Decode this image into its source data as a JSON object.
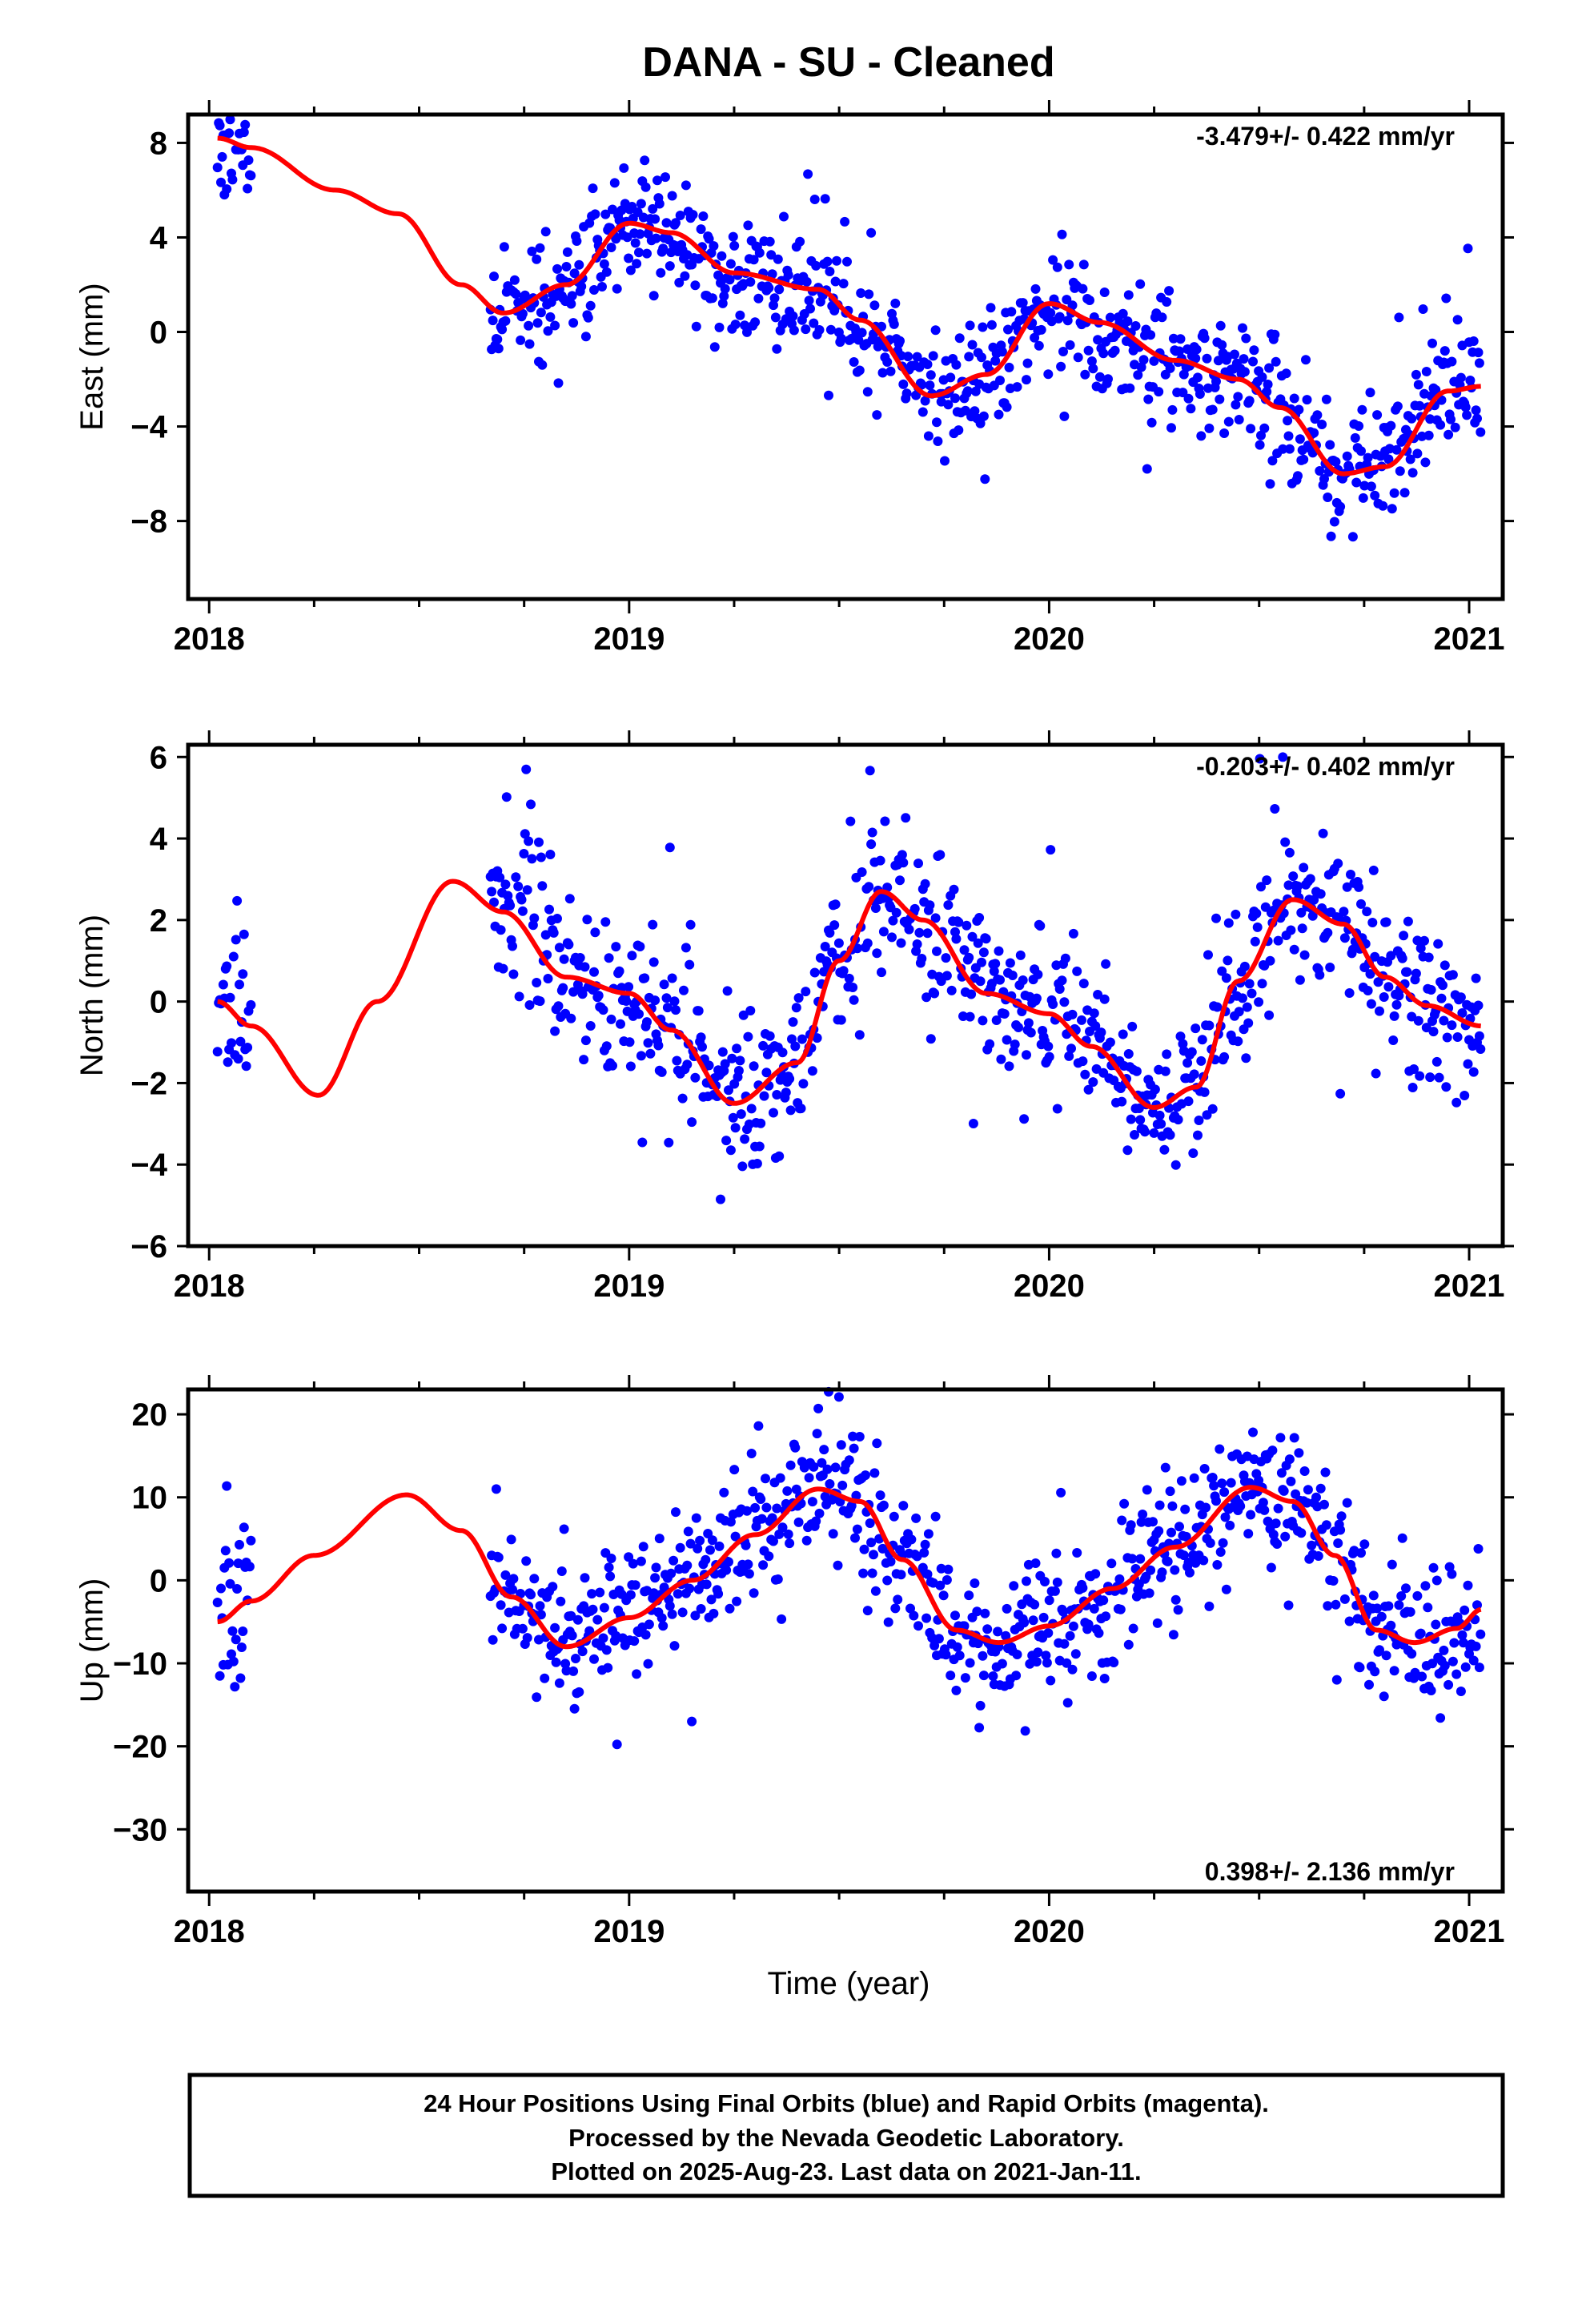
{
  "page": {
    "title": "DANA  - SU - Cleaned",
    "xlabel": "Time (year)",
    "footer": [
      "24 Hour Positions Using Final Orbits (blue) and Rapid Orbits (magenta).",
      "Processed by the Nevada Geodetic Laboratory.",
      "Plotted on 2025-Aug-23. Last data on 2021-Jan-11."
    ]
  },
  "colors": {
    "points": "#0000ff",
    "model": "#ff0000",
    "frame": "#000000"
  },
  "chart_data": [
    {
      "type": "scatter",
      "ylabel": "East (mm)",
      "rate": "-3.479+/- 0.422 mm/yr",
      "rate_position": "top-right",
      "xlim": [
        2017.95,
        2021.08
      ],
      "ylim": [
        -11.3,
        9.2
      ],
      "xticks": [
        2018,
        2019,
        2020,
        2021
      ],
      "yticks": [
        8,
        4,
        0,
        -4,
        -8
      ],
      "ytick_labels": [
        "8",
        "4",
        "0",
        "−4",
        "−8"
      ],
      "series": [
        {
          "kind": "points",
          "seed": 11,
          "scatter_sd": 1.3,
          "outlier_rate": 0.02,
          "segments": [
            [
              2018.02,
              2018.1
            ],
            [
              2018.67,
              2021.03
            ]
          ]
        },
        {
          "kind": "model",
          "knots": [
            [
              2018.02,
              8.2
            ],
            [
              2018.1,
              7.8
            ],
            [
              2018.3,
              6.0
            ],
            [
              2018.45,
              5.0
            ],
            [
              2018.6,
              2.0
            ],
            [
              2018.7,
              0.8
            ],
            [
              2018.85,
              2.0
            ],
            [
              2019.0,
              4.6
            ],
            [
              2019.1,
              4.2
            ],
            [
              2019.25,
              2.5
            ],
            [
              2019.45,
              1.8
            ],
            [
              2019.55,
              0.5
            ],
            [
              2019.72,
              -2.7
            ],
            [
              2019.85,
              -1.8
            ],
            [
              2020.0,
              1.2
            ],
            [
              2020.12,
              0.4
            ],
            [
              2020.3,
              -1.2
            ],
            [
              2020.45,
              -2.0
            ],
            [
              2020.55,
              -3.2
            ],
            [
              2020.7,
              -6.0
            ],
            [
              2020.8,
              -5.7
            ],
            [
              2020.95,
              -2.5
            ],
            [
              2021.03,
              -2.3
            ]
          ]
        }
      ]
    },
    {
      "type": "scatter",
      "ylabel": "North (mm)",
      "rate": "-0.203+/- 0.402 mm/yr",
      "rate_position": "top-right",
      "xlim": [
        2017.95,
        2021.08
      ],
      "ylim": [
        -6.0,
        6.3
      ],
      "xticks": [
        2018,
        2019,
        2020,
        2021
      ],
      "yticks": [
        6,
        4,
        2,
        0,
        -2,
        -4,
        -6
      ],
      "ytick_labels": [
        "6",
        "4",
        "2",
        "0",
        "−2",
        "−4",
        "−6"
      ],
      "series": [
        {
          "kind": "points",
          "seed": 23,
          "scatter_sd": 0.95,
          "outlier_rate": 0.02,
          "segments": [
            [
              2018.02,
              2018.1
            ],
            [
              2018.67,
              2021.03
            ]
          ]
        },
        {
          "kind": "model",
          "knots": [
            [
              2018.02,
              0.0
            ],
            [
              2018.1,
              -0.6
            ],
            [
              2018.26,
              -2.3
            ],
            [
              2018.4,
              0.0
            ],
            [
              2018.58,
              2.95
            ],
            [
              2018.7,
              2.2
            ],
            [
              2018.85,
              0.6
            ],
            [
              2019.0,
              0.2
            ],
            [
              2019.1,
              -0.7
            ],
            [
              2019.25,
              -2.5
            ],
            [
              2019.4,
              -1.5
            ],
            [
              2019.5,
              1.0
            ],
            [
              2019.6,
              2.7
            ],
            [
              2019.7,
              2.0
            ],
            [
              2019.85,
              0.2
            ],
            [
              2020.0,
              -0.3
            ],
            [
              2020.1,
              -1.1
            ],
            [
              2020.25,
              -2.6
            ],
            [
              2020.35,
              -2.1
            ],
            [
              2020.45,
              0.5
            ],
            [
              2020.58,
              2.5
            ],
            [
              2020.7,
              1.9
            ],
            [
              2020.8,
              0.6
            ],
            [
              2020.9,
              -0.1
            ],
            [
              2021.03,
              -0.6
            ]
          ]
        }
      ]
    },
    {
      "type": "scatter",
      "ylabel": "Up (mm)",
      "rate": "0.398+/- 2.136 mm/yr",
      "rate_position": "bottom-right",
      "xlim": [
        2017.95,
        2021.08
      ],
      "ylim": [
        -37.5,
        23.0
      ],
      "xticks": [
        2018,
        2019,
        2020,
        2021
      ],
      "yticks": [
        20,
        10,
        0,
        -10,
        -20,
        -30
      ],
      "ytick_labels": [
        "20",
        "10",
        "0",
        "−10",
        "−20",
        "−30"
      ],
      "series": [
        {
          "kind": "points",
          "seed": 37,
          "scatter_sd": 4.3,
          "outlier_rate": 0.02,
          "segments": [
            [
              2018.02,
              2018.1
            ],
            [
              2018.67,
              2021.03
            ]
          ]
        },
        {
          "kind": "model",
          "knots": [
            [
              2018.02,
              -5.0
            ],
            [
              2018.1,
              -2.5
            ],
            [
              2018.25,
              3.0
            ],
            [
              2018.47,
              10.3
            ],
            [
              2018.6,
              6.0
            ],
            [
              2018.72,
              -2.0
            ],
            [
              2018.85,
              -8.0
            ],
            [
              2019.0,
              -4.5
            ],
            [
              2019.15,
              0.0
            ],
            [
              2019.3,
              5.5
            ],
            [
              2019.45,
              11.0
            ],
            [
              2019.55,
              9.5
            ],
            [
              2019.65,
              2.5
            ],
            [
              2019.78,
              -6.0
            ],
            [
              2019.88,
              -7.5
            ],
            [
              2020.0,
              -5.5
            ],
            [
              2020.15,
              -1.0
            ],
            [
              2020.3,
              4.0
            ],
            [
              2020.48,
              11.2
            ],
            [
              2020.58,
              9.5
            ],
            [
              2020.68,
              3.0
            ],
            [
              2020.78,
              -6.0
            ],
            [
              2020.87,
              -7.5
            ],
            [
              2020.97,
              -5.8
            ],
            [
              2021.03,
              -3.5
            ]
          ]
        }
      ]
    }
  ]
}
